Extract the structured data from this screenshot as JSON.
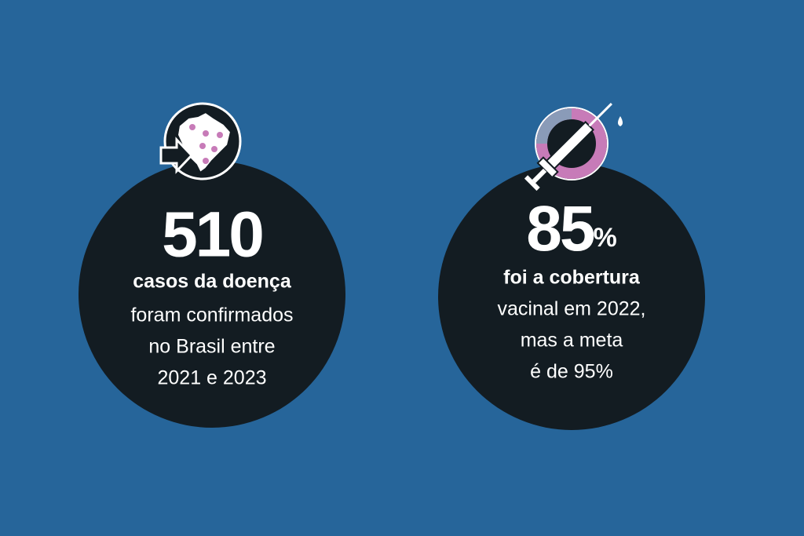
{
  "left": {
    "number": "510",
    "lines": [
      "casos da doença",
      "foram confirmados",
      "no Brasil entre",
      "2021 e 2023"
    ]
  },
  "right": {
    "number": "85",
    "unit": "%",
    "lines": [
      "foi a cobertura",
      "vacinal em 2022,",
      "mas a meta",
      "é de 95%"
    ]
  }
}
